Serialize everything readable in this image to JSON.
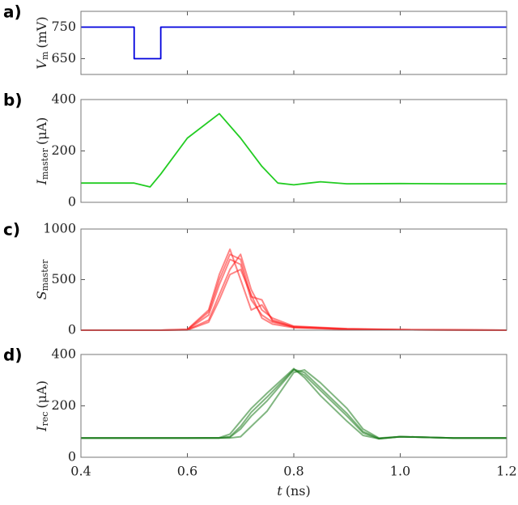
{
  "chart_data": [
    {
      "type": "line",
      "panel_label": "a)",
      "ylabel": {
        "symbol": "V",
        "subscript": "m",
        "unit": "(mV)"
      },
      "x": [
        0.4,
        0.5,
        0.5,
        0.55,
        0.55,
        1.2
      ],
      "series": [
        {
          "color": "#0000dd",
          "values": [
            750,
            750,
            650,
            650,
            750,
            750
          ]
        }
      ],
      "xlim": [
        0.4,
        1.2
      ],
      "ylim": [
        600,
        800
      ],
      "yticks": [
        650,
        750
      ]
    },
    {
      "type": "line",
      "panel_label": "b)",
      "ylabel": {
        "symbol": "I",
        "subscript": "master",
        "unit": "(μA)"
      },
      "x": [
        0.4,
        0.5,
        0.53,
        0.55,
        0.6,
        0.66,
        0.7,
        0.74,
        0.77,
        0.8,
        0.85,
        0.9,
        1.0,
        1.1,
        1.2
      ],
      "series": [
        {
          "color": "#22cc22",
          "values": [
            75,
            75,
            60,
            110,
            250,
            345,
            250,
            140,
            75,
            68,
            80,
            72,
            73,
            72,
            72
          ]
        }
      ],
      "xlim": [
        0.4,
        1.2
      ],
      "ylim": [
        0,
        400
      ],
      "yticks": [
        0,
        200,
        400
      ]
    },
    {
      "type": "line",
      "panel_label": "c)",
      "ylabel": {
        "symbol": "S",
        "subscript": "master"
      },
      "x": [
        0.4,
        0.55,
        0.6,
        0.64,
        0.66,
        0.68,
        0.7,
        0.72,
        0.74,
        0.76,
        0.8,
        0.9,
        1.0,
        1.2
      ],
      "series": [
        {
          "color": "#ff2020",
          "values": [
            0,
            0,
            5,
            150,
            450,
            700,
            650,
            300,
            150,
            80,
            30,
            10,
            5,
            0
          ]
        },
        {
          "color": "#ff2020",
          "values": [
            0,
            0,
            3,
            100,
            350,
            600,
            750,
            400,
            200,
            120,
            40,
            15,
            5,
            0
          ]
        },
        {
          "color": "#ff2020",
          "values": [
            0,
            0,
            8,
            200,
            550,
            800,
            500,
            200,
            250,
            100,
            30,
            10,
            5,
            0
          ]
        },
        {
          "color": "#ff2020",
          "values": [
            0,
            0,
            2,
            80,
            300,
            550,
            600,
            350,
            120,
            60,
            25,
            8,
            4,
            0
          ]
        },
        {
          "color": "#ff2020",
          "values": [
            0,
            0,
            6,
            180,
            500,
            750,
            700,
            330,
            300,
            90,
            35,
            12,
            5,
            0
          ]
        }
      ],
      "xlim": [
        0.4,
        1.2
      ],
      "ylim": [
        0,
        1000
      ],
      "yticks": [
        0,
        500,
        1000
      ]
    },
    {
      "type": "line",
      "panel_label": "d)",
      "ylabel": {
        "symbol": "I",
        "subscript": "rec",
        "unit": "(μA)"
      },
      "xlabel": {
        "symbol": "t",
        "unit": "(ns)"
      },
      "x": [
        0.4,
        0.6,
        0.66,
        0.68,
        0.7,
        0.72,
        0.75,
        0.8,
        0.82,
        0.85,
        0.9,
        0.93,
        0.96,
        1.0,
        1.1,
        1.2
      ],
      "series": [
        {
          "color": "#1a7a1a",
          "values": [
            75,
            75,
            75,
            78,
            110,
            160,
            220,
            340,
            320,
            260,
            160,
            95,
            72,
            80,
            75,
            75
          ]
        },
        {
          "color": "#1a7a1a",
          "values": [
            75,
            75,
            75,
            75,
            80,
            120,
            180,
            330,
            340,
            290,
            190,
            110,
            75,
            80,
            75,
            75
          ]
        },
        {
          "color": "#1a7a1a",
          "values": [
            75,
            75,
            76,
            90,
            140,
            190,
            250,
            345,
            310,
            240,
            140,
            85,
            72,
            80,
            75,
            75
          ]
        },
        {
          "color": "#1a7a1a",
          "values": [
            75,
            75,
            75,
            80,
            120,
            175,
            235,
            342,
            330,
            270,
            170,
            100,
            73,
            80,
            75,
            75
          ]
        }
      ],
      "xlim": [
        0.4,
        1.2
      ],
      "ylim": [
        0,
        400
      ],
      "yticks": [
        0,
        200,
        400
      ],
      "xticks": [
        0.4,
        0.6,
        0.8,
        {
          "value": 1,
          "label": "1.0"
        },
        1.2
      ]
    }
  ]
}
